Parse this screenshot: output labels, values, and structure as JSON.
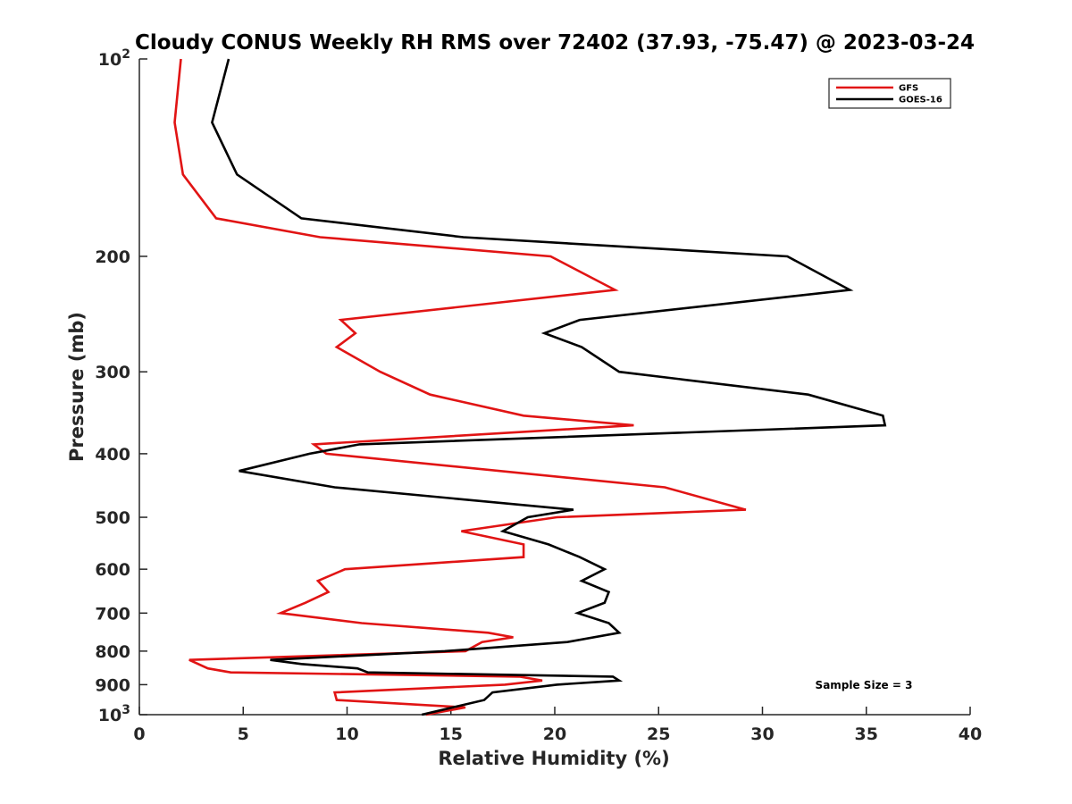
{
  "chart_data": {
    "type": "line",
    "title": "Cloudy CONUS Weekly RH RMS over 72402 (37.93, -75.47) @ 2023-03-24",
    "xlabel": "Relative Humidity (%)",
    "ylabel": "Pressure (mb)",
    "xlim": [
      0,
      40
    ],
    "ylim": [
      100,
      1000
    ],
    "y_scale": "log",
    "y_reversed": true,
    "x_ticks": [
      0,
      5,
      10,
      15,
      20,
      25,
      30,
      35,
      40
    ],
    "y_ticks": [
      {
        "value": 100,
        "base": "10",
        "exp": "2"
      },
      {
        "value": 200,
        "label": "200"
      },
      {
        "value": 300,
        "label": "300"
      },
      {
        "value": 400,
        "label": "400"
      },
      {
        "value": 500,
        "label": "500"
      },
      {
        "value": 600,
        "label": "600"
      },
      {
        "value": 700,
        "label": "700"
      },
      {
        "value": 800,
        "label": "800"
      },
      {
        "value": 900,
        "label": "900"
      },
      {
        "value": 1000,
        "base": "10",
        "exp": "3"
      }
    ],
    "legend_position": "top-right",
    "annotation": "Sample Size = 3",
    "series": [
      {
        "name": "GFS",
        "color": "#e11414",
        "points": [
          [
            2.0,
            100
          ],
          [
            1.7,
            125
          ],
          [
            2.1,
            150
          ],
          [
            3.7,
            175
          ],
          [
            8.7,
            187
          ],
          [
            19.8,
            200
          ],
          [
            22.9,
            225
          ],
          [
            9.7,
            250
          ],
          [
            10.4,
            262
          ],
          [
            9.5,
            275
          ],
          [
            11.6,
            300
          ],
          [
            14.0,
            325
          ],
          [
            18.5,
            350
          ],
          [
            23.8,
            362
          ],
          [
            8.4,
            387
          ],
          [
            9.0,
            400
          ],
          [
            25.3,
            450
          ],
          [
            29.2,
            487
          ],
          [
            20.1,
            500
          ],
          [
            15.5,
            525
          ],
          [
            18.5,
            550
          ],
          [
            18.5,
            575
          ],
          [
            9.9,
            600
          ],
          [
            8.6,
            625
          ],
          [
            9.1,
            650
          ],
          [
            8.0,
            675
          ],
          [
            6.8,
            700
          ],
          [
            10.7,
            725
          ],
          [
            16.8,
            750
          ],
          [
            18.0,
            762
          ],
          [
            16.5,
            775
          ],
          [
            15.7,
            800
          ],
          [
            2.4,
            825
          ],
          [
            3.3,
            850
          ],
          [
            4.4,
            862
          ],
          [
            18.3,
            875
          ],
          [
            19.4,
            887
          ],
          [
            17.6,
            900
          ],
          [
            9.4,
            925
          ],
          [
            9.5,
            950
          ],
          [
            15.7,
            975
          ],
          [
            13.8,
            1000
          ]
        ]
      },
      {
        "name": "GOES-16",
        "color": "#000000",
        "points": [
          [
            4.3,
            100
          ],
          [
            3.5,
            125
          ],
          [
            4.7,
            150
          ],
          [
            7.8,
            175
          ],
          [
            15.6,
            187
          ],
          [
            31.2,
            200
          ],
          [
            34.2,
            225
          ],
          [
            21.2,
            250
          ],
          [
            19.5,
            262
          ],
          [
            21.3,
            275
          ],
          [
            23.1,
            300
          ],
          [
            32.2,
            325
          ],
          [
            35.8,
            350
          ],
          [
            35.9,
            362
          ],
          [
            10.6,
            387
          ],
          [
            8.2,
            400
          ],
          [
            4.8,
            425
          ],
          [
            9.4,
            450
          ],
          [
            20.9,
            487
          ],
          [
            18.7,
            500
          ],
          [
            17.5,
            525
          ],
          [
            19.7,
            550
          ],
          [
            21.2,
            575
          ],
          [
            22.4,
            600
          ],
          [
            21.3,
            625
          ],
          [
            22.6,
            650
          ],
          [
            22.4,
            675
          ],
          [
            21.1,
            700
          ],
          [
            22.6,
            725
          ],
          [
            23.1,
            750
          ],
          [
            20.6,
            775
          ],
          [
            14.7,
            800
          ],
          [
            6.3,
            825
          ],
          [
            7.8,
            837
          ],
          [
            10.5,
            850
          ],
          [
            11.0,
            862
          ],
          [
            22.8,
            875
          ],
          [
            23.1,
            887
          ],
          [
            20.1,
            900
          ],
          [
            17.0,
            925
          ],
          [
            16.6,
            950
          ],
          [
            13.6,
            1000
          ]
        ]
      }
    ]
  }
}
